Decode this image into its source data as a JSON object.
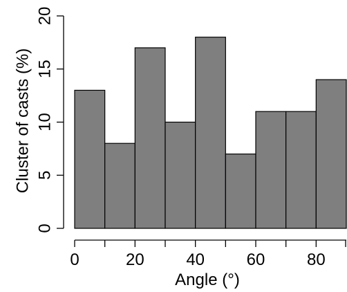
{
  "chart_data": {
    "type": "bar",
    "title": "",
    "xlabel": "Angle (°)",
    "ylabel": "Cluster of casts (%)",
    "bin_edges": [
      0,
      10,
      20,
      30,
      40,
      50,
      60,
      70,
      80,
      90
    ],
    "values": [
      13,
      8,
      17,
      10,
      18,
      7,
      11,
      11,
      14
    ],
    "xlim": [
      0,
      90
    ],
    "ylim": [
      0,
      20
    ],
    "x_ticks": [
      0,
      20,
      40,
      60,
      80
    ],
    "x_minor_ticks": [
      10,
      30,
      50,
      70,
      90
    ],
    "y_ticks": [
      0,
      5,
      10,
      15,
      20
    ],
    "bar_color": "#7f7f80",
    "grid": false,
    "legend": "none"
  }
}
